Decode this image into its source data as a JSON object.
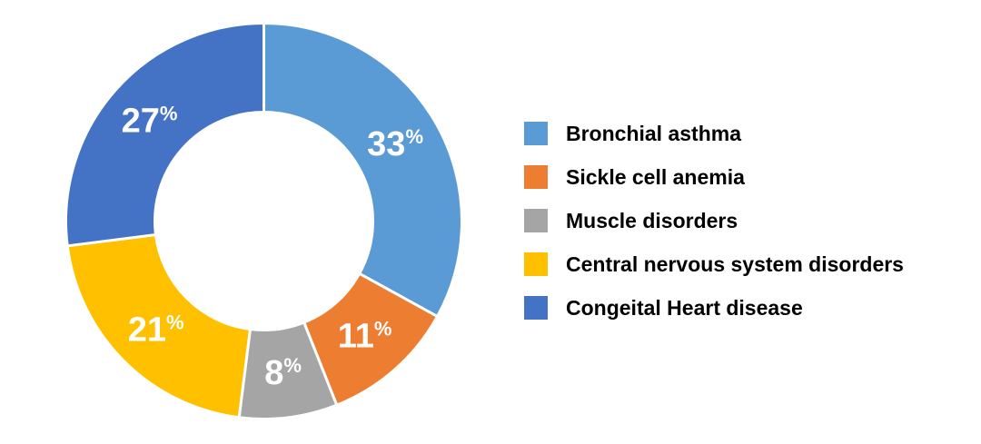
{
  "chart_data": {
    "type": "pie",
    "subtype": "donut",
    "title": "",
    "categories": [
      "Bronchial asthma",
      "Sickle cell anemia",
      "Muscle disorders",
      "Central nervous system disorders",
      "Congeital Heart disease"
    ],
    "values": [
      33,
      11,
      8,
      21,
      27
    ],
    "unit": "%",
    "labels": [
      "33%",
      "11%",
      "8%",
      "21%",
      "27%"
    ],
    "colors": [
      "#5B9BD5",
      "#ED7D31",
      "#A5A5A5",
      "#FFC000",
      "#4472C4"
    ],
    "label_color": "#FFFFFF",
    "slice_gap_color": "#FFFFFF",
    "start_angle_deg": 0,
    "direction": "clockwise",
    "inner_radius_ratio": 0.55,
    "legend_position": "right",
    "grid": false
  }
}
